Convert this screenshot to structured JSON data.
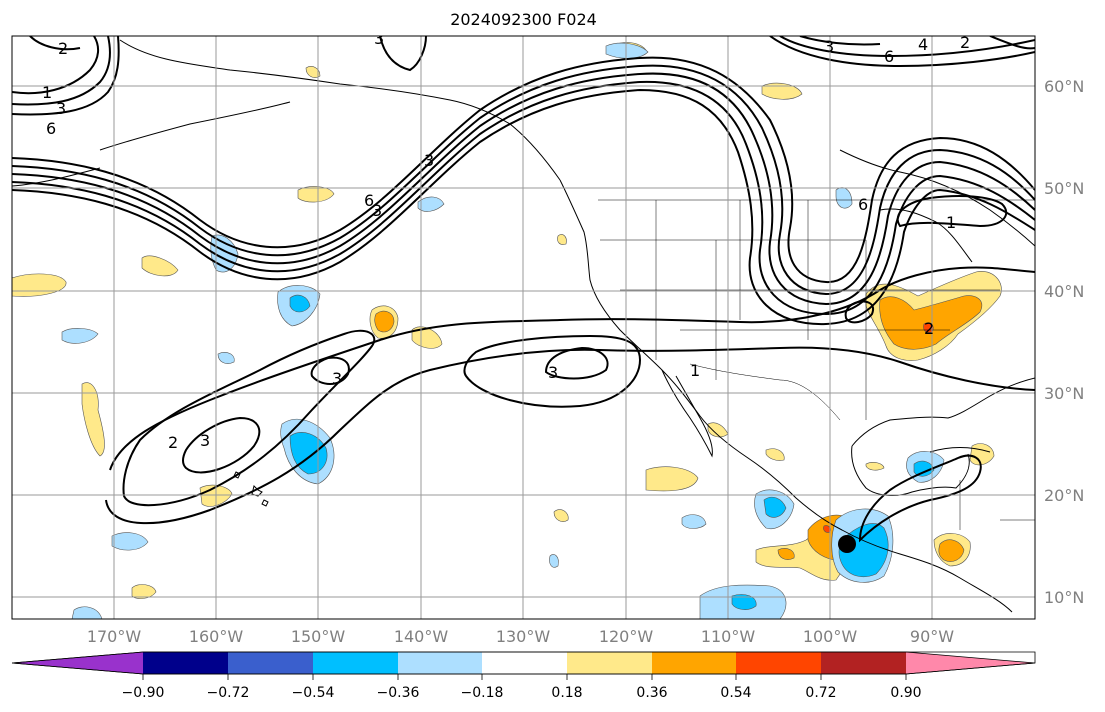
{
  "title": "2024092300 F024",
  "map": {
    "lon_labels": [
      "170°W",
      "160°W",
      "150°W",
      "140°W",
      "130°W",
      "120°W",
      "110°W",
      "100°W",
      "90°W"
    ],
    "lat_labels": [
      "60°N",
      "50°N",
      "40°N",
      "30°N",
      "20°N",
      "10°N"
    ],
    "label_color": "#808080",
    "grid_color": "#9a9a9a"
  },
  "contour_labels": [
    "2",
    "1",
    "3",
    "6",
    "6",
    "3",
    "3",
    "3",
    "2",
    "3",
    "3",
    "1",
    "3",
    "6",
    "4",
    "2",
    "1",
    "2",
    "6",
    "3"
  ],
  "colorbar": {
    "ticks": [
      "−0.90",
      "−0.72",
      "−0.54",
      "−0.36",
      "−0.18",
      "0.18",
      "0.36",
      "0.54",
      "0.72",
      "0.90"
    ],
    "colors": [
      "#9932CC",
      "#00008B",
      "#3A5FCD",
      "#00BFFF",
      "#ADDFFF",
      "#FFFFFF",
      "#FFE98A",
      "#FFA500",
      "#FF4500",
      "#B22222",
      "#FF88AA"
    ]
  }
}
